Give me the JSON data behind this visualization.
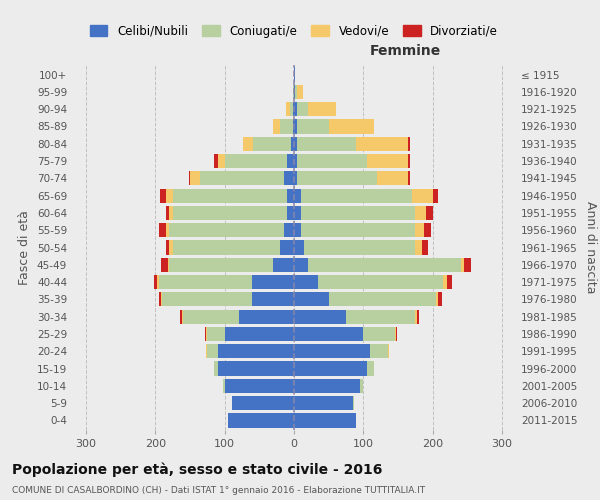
{
  "age_groups": [
    "0-4",
    "5-9",
    "10-14",
    "15-19",
    "20-24",
    "25-29",
    "30-34",
    "35-39",
    "40-44",
    "45-49",
    "50-54",
    "55-59",
    "60-64",
    "65-69",
    "70-74",
    "75-79",
    "80-84",
    "85-89",
    "90-94",
    "95-99",
    "100+"
  ],
  "birth_years": [
    "2011-2015",
    "2006-2010",
    "2001-2005",
    "1996-2000",
    "1991-1995",
    "1986-1990",
    "1981-1985",
    "1976-1980",
    "1971-1975",
    "1966-1970",
    "1961-1965",
    "1956-1960",
    "1951-1955",
    "1946-1950",
    "1941-1945",
    "1936-1940",
    "1931-1935",
    "1926-1930",
    "1921-1925",
    "1916-1920",
    "≤ 1915"
  ],
  "colors": {
    "celibi": "#4472c4",
    "coniugati": "#b8cfa0",
    "vedovi": "#f5c96a",
    "divorziati": "#cc2222"
  },
  "males": {
    "celibi": [
      95,
      90,
      100,
      110,
      110,
      100,
      80,
      60,
      60,
      30,
      20,
      15,
      10,
      10,
      15,
      10,
      4,
      2,
      1,
      0,
      0
    ],
    "coniugati": [
      0,
      0,
      2,
      5,
      15,
      25,
      80,
      130,
      135,
      150,
      155,
      165,
      165,
      165,
      120,
      90,
      55,
      18,
      5,
      1,
      0
    ],
    "vedovi": [
      0,
      0,
      0,
      0,
      2,
      2,
      2,
      2,
      2,
      2,
      5,
      5,
      5,
      10,
      15,
      10,
      15,
      10,
      5,
      1,
      0
    ],
    "divorziati": [
      0,
      0,
      0,
      0,
      0,
      2,
      2,
      2,
      5,
      10,
      5,
      10,
      5,
      8,
      2,
      5,
      0,
      0,
      0,
      0,
      0
    ]
  },
  "females": {
    "celibi": [
      90,
      85,
      95,
      105,
      110,
      100,
      75,
      50,
      35,
      20,
      15,
      10,
      10,
      10,
      5,
      5,
      5,
      5,
      5,
      2,
      1
    ],
    "coniugati": [
      0,
      2,
      5,
      10,
      25,
      45,
      100,
      155,
      180,
      220,
      160,
      165,
      165,
      160,
      115,
      100,
      85,
      45,
      15,
      3,
      0
    ],
    "vedovi": [
      0,
      0,
      0,
      0,
      2,
      2,
      2,
      3,
      5,
      5,
      10,
      12,
      15,
      30,
      45,
      60,
      75,
      65,
      40,
      8,
      0
    ],
    "divorziati": [
      0,
      0,
      0,
      0,
      0,
      2,
      3,
      5,
      8,
      10,
      8,
      10,
      10,
      8,
      2,
      2,
      2,
      0,
      0,
      0,
      0
    ]
  },
  "xlim": 320,
  "title": "Popolazione per età, sesso e stato civile - 2016",
  "subtitle": "COMUNE DI CASALBORDINO (CH) - Dati ISTAT 1° gennaio 2016 - Elaborazione TUTTITALIA.IT",
  "ylabel_left": "Fasce di età",
  "ylabel_right": "Anni di nascita",
  "xlabel_right": "Femmine"
}
